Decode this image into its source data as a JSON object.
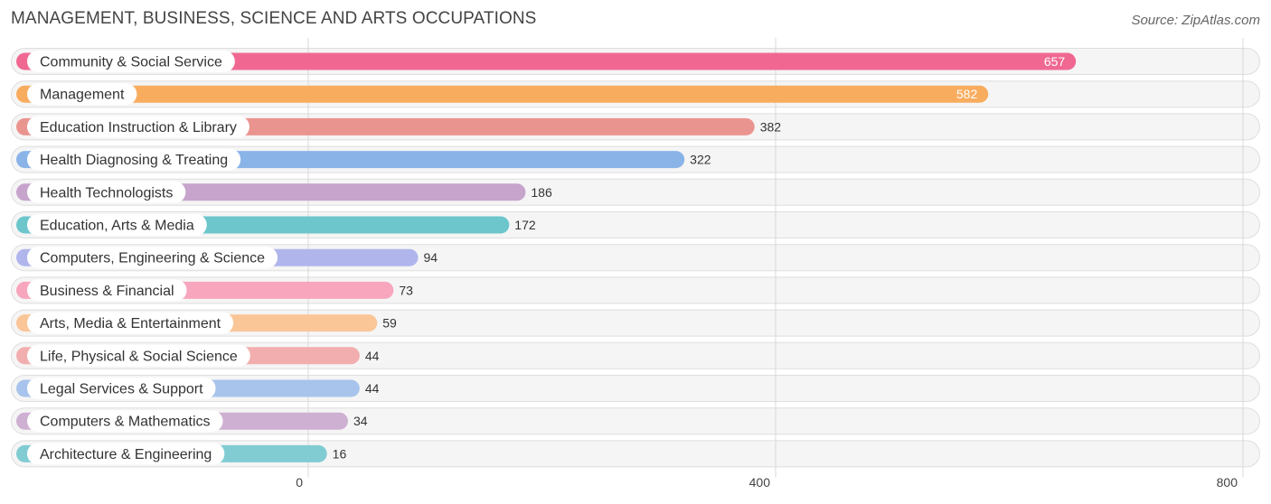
{
  "title": "MANAGEMENT, BUSINESS, SCIENCE AND ARTS OCCUPATIONS",
  "source": "Source: ZipAtlas.com",
  "chart_data": {
    "type": "bar",
    "orientation": "horizontal",
    "categories": [
      "Community & Social Service",
      "Management",
      "Education Instruction & Library",
      "Health Diagnosing & Treating",
      "Health Technologists",
      "Education, Arts & Media",
      "Computers, Engineering & Science",
      "Business & Financial",
      "Arts, Media & Entertainment",
      "Life, Physical & Social Science",
      "Legal Services & Support",
      "Computers & Mathematics",
      "Architecture & Engineering"
    ],
    "values": [
      657,
      582,
      382,
      322,
      186,
      172,
      94,
      73,
      59,
      44,
      44,
      34,
      16
    ],
    "value_labels": [
      "657",
      "582",
      "382",
      "322",
      "186",
      "172",
      "94",
      "73",
      "59",
      "44",
      "44",
      "34",
      "16"
    ],
    "colors": [
      "#f06892",
      "#f8ac5e",
      "#ea9490",
      "#8ab4e8",
      "#c6a4cc",
      "#6cc6cc",
      "#b0b6ec",
      "#f7a6be",
      "#fac698",
      "#f2aeae",
      "#a8c4ec",
      "#ceb0d2",
      "#80ccd2"
    ],
    "xlim": [
      0,
      800
    ],
    "xticks": [
      0,
      400,
      800
    ],
    "xtick_labels": [
      "0",
      "400",
      "800"
    ],
    "grid": true,
    "legend": "none"
  }
}
